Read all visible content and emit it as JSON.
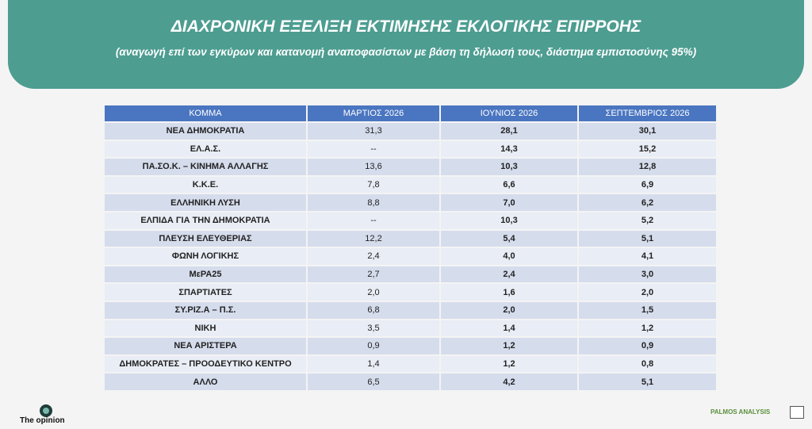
{
  "header": {
    "title": "ΔΙΑΧΡΟΝΙΚΗ ΕΞΕΛΙΞΗ ΕΚΤΙΜΗΣΗΣ ΕΚΛΟΓΙΚΗΣ ΕΠΙΡΡΟΗΣ",
    "subtitle": "(αναγωγή επί των εγκύρων και κατανομή αναποφασίστων με βάση τη δήλωσή τους, διάστημα εμπιστοσύνης 95%)"
  },
  "table": {
    "columns": [
      "ΚΟΜΜΑ",
      "ΜΑΡΤΙΟΣ 2026",
      "ΙΟΥΝΙΟΣ 2026",
      "ΣΕΠΤΕΜΒΡΙΟΣ 2026"
    ],
    "rows": [
      {
        "party": "ΝΕΑ ΔΗΜΟΚΡΑΤΙΑ",
        "mar": "31,3",
        "jun": "28,1",
        "sep": "30,1"
      },
      {
        "party": "ΕΛ.Α.Σ.",
        "mar": "--",
        "jun": "14,3",
        "sep": "15,2"
      },
      {
        "party": "ΠΑ.ΣΟ.Κ. – ΚΙΝΗΜΑ ΑΛΛΑΓΗΣ",
        "mar": "13,6",
        "jun": "10,3",
        "sep": "12,8"
      },
      {
        "party": "Κ.Κ.Ε.",
        "mar": "7,8",
        "jun": "6,6",
        "sep": "6,9"
      },
      {
        "party": "ΕΛΛΗΝΙΚΗ ΛΥΣΗ",
        "mar": "8,8",
        "jun": "7,0",
        "sep": "6,2"
      },
      {
        "party": "ΕΛΠΙΔΑ ΓΙΑ ΤΗΝ ΔΗΜΟΚΡΑΤΙΑ",
        "mar": "--",
        "jun": "10,3",
        "sep": "5,2"
      },
      {
        "party": "ΠΛΕΥΣΗ ΕΛΕΥΘΕΡΙΑΣ",
        "mar": "12,2",
        "jun": "5,4",
        "sep": "5,1"
      },
      {
        "party": "ΦΩΝΗ ΛΟΓΙΚΗΣ",
        "mar": "2,4",
        "jun": "4,0",
        "sep": "4,1"
      },
      {
        "party": "ΜεΡΑ25",
        "mar": "2,7",
        "jun": "2,4",
        "sep": "3,0"
      },
      {
        "party": "ΣΠΑΡΤΙΑΤΕΣ",
        "mar": "2,0",
        "jun": "1,6",
        "sep": "2,0"
      },
      {
        "party": "ΣΥ.ΡΙΖ.Α – Π.Σ.",
        "mar": "6,8",
        "jun": "2,0",
        "sep": "1,5"
      },
      {
        "party": "ΝΙΚΗ",
        "mar": "3,5",
        "jun": "1,4",
        "sep": "1,2"
      },
      {
        "party": "ΝΕΑ ΑΡΙΣΤΕΡΑ",
        "mar": "0,9",
        "jun": "1,2",
        "sep": "0,9"
      },
      {
        "party": "ΔΗΜΟΚΡΑΤΕΣ – ΠΡΟΟΔΕΥΤΙΚΟ ΚΕΝΤΡΟ",
        "mar": "1,4",
        "jun": "1,2",
        "sep": "0,8"
      },
      {
        "party": "ΑΛΛΟ",
        "mar": "6,5",
        "jun": "4,2",
        "sep": "5,1"
      }
    ]
  },
  "footer": {
    "left_logo_text": "The opinion",
    "right_logo_text": "PALMOS ANALYSIS"
  },
  "colors": {
    "banner": "#4d9d91",
    "table_header": "#4a75c0",
    "row_odd": "#d5dcec",
    "row_even": "#e9edf5"
  }
}
